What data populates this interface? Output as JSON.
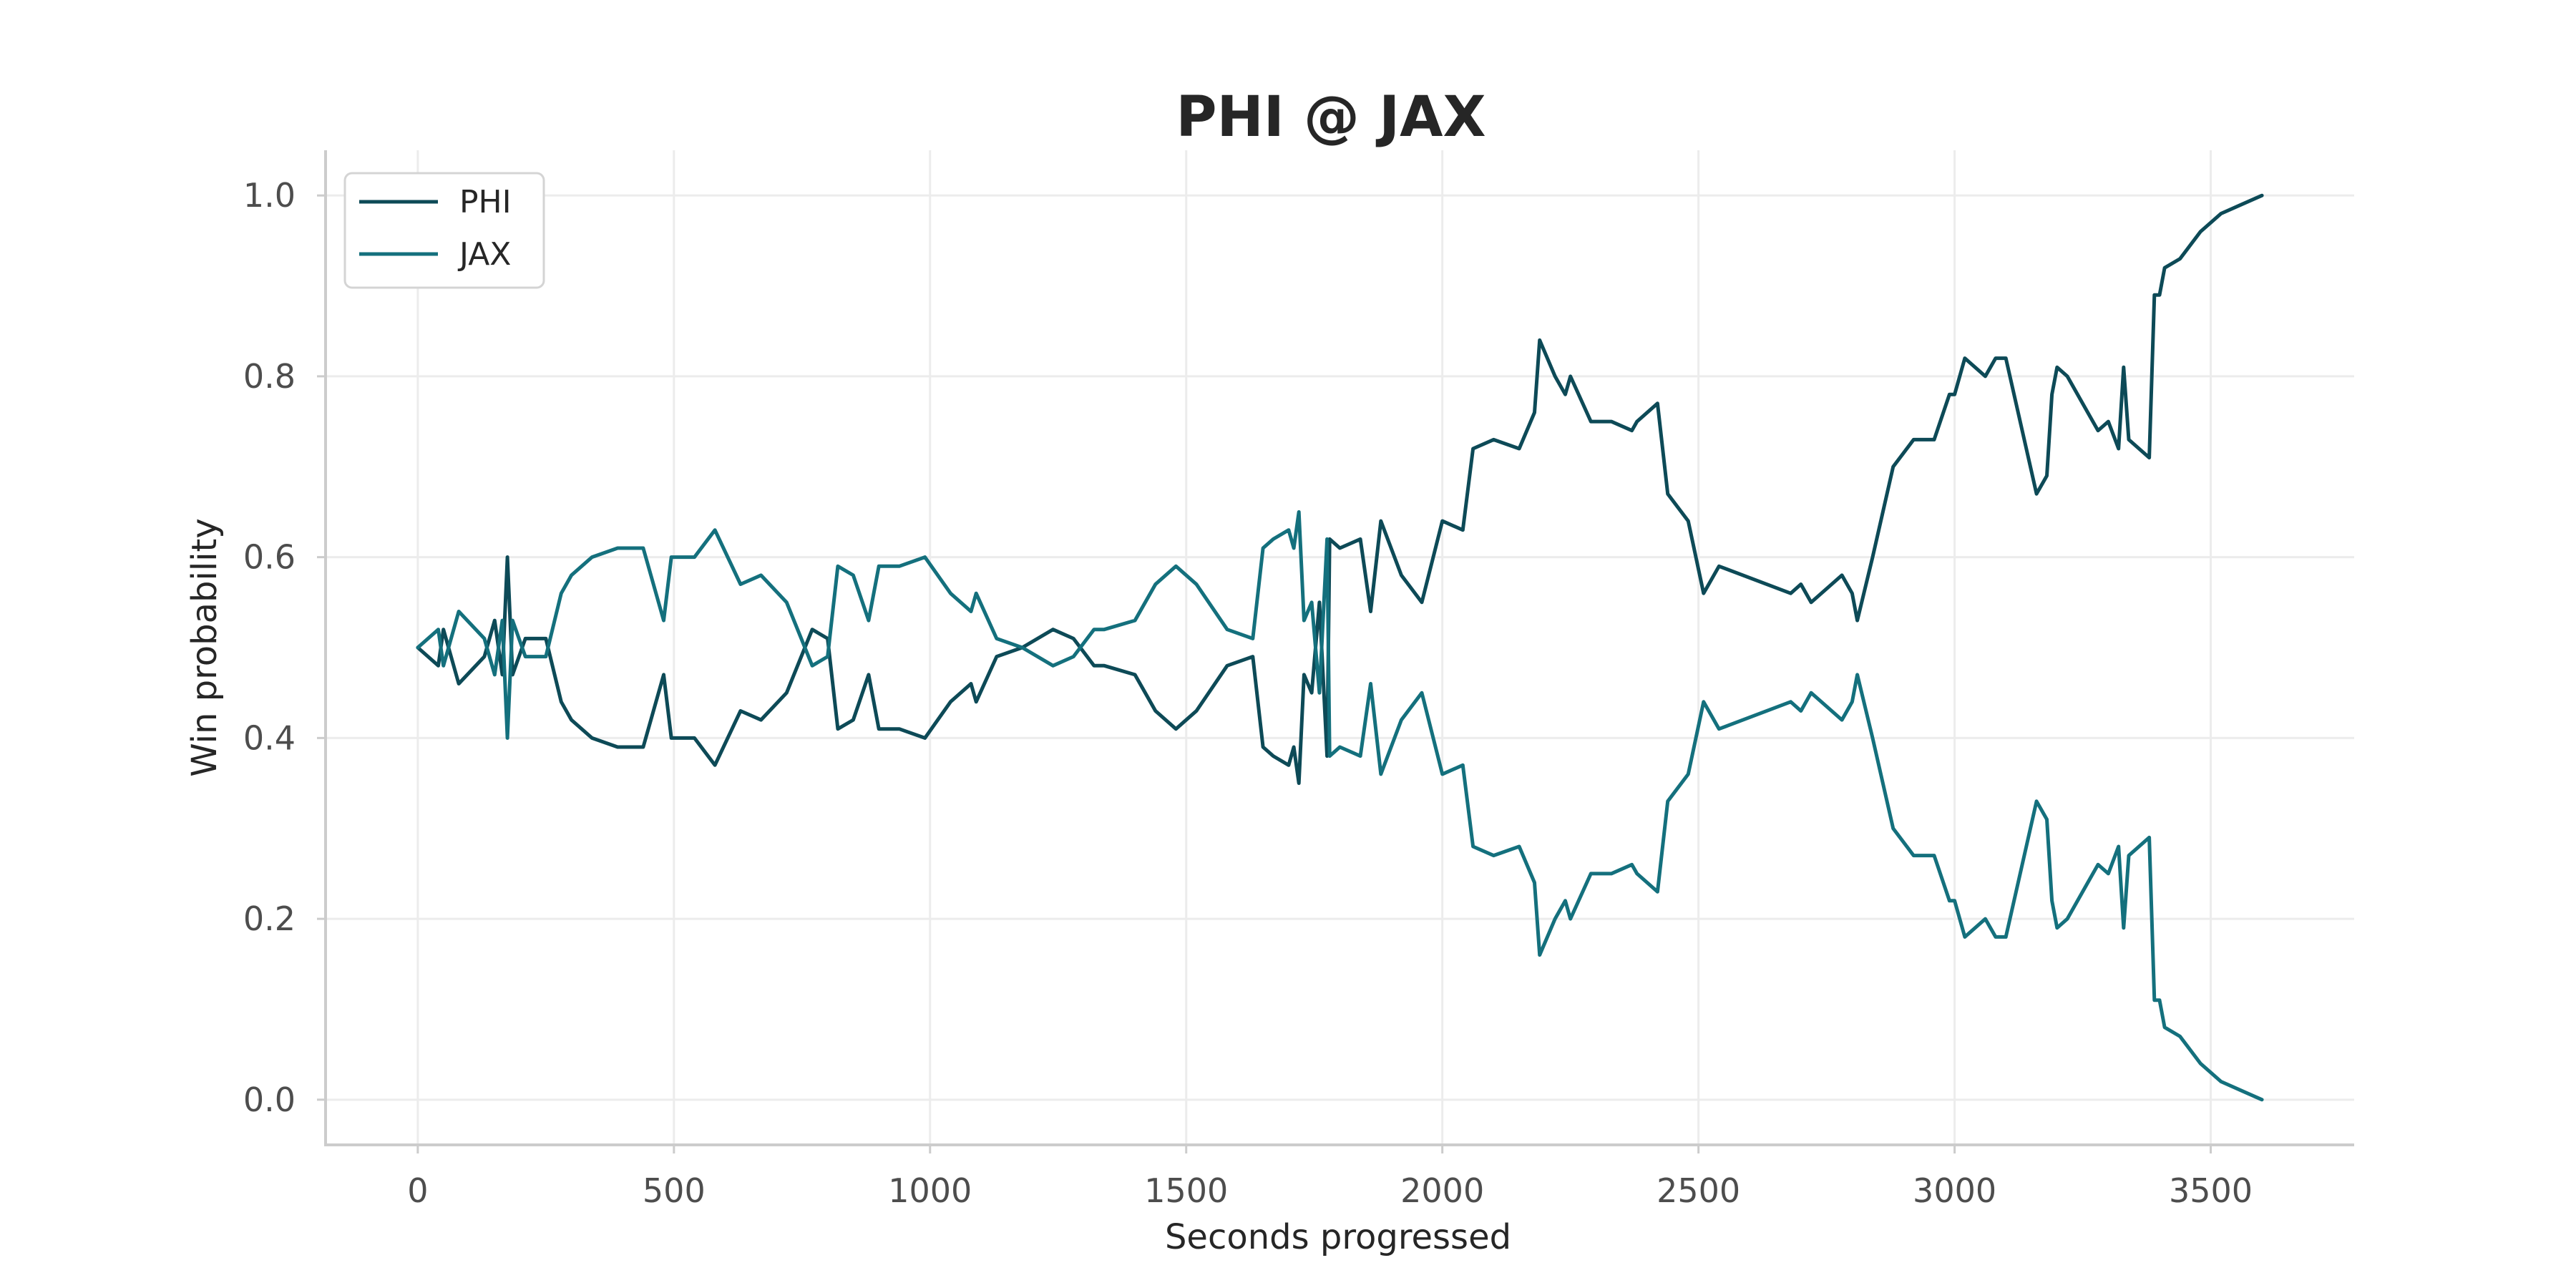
{
  "chart_data": {
    "type": "line",
    "title": "PHI @ JAX",
    "xlabel": "Seconds progressed",
    "ylabel": "Win probability",
    "xlim": [
      -180,
      3780
    ],
    "ylim": [
      -0.05,
      1.05
    ],
    "xticks": [
      0,
      500,
      1000,
      1500,
      2000,
      2500,
      3000,
      3500
    ],
    "yticks": [
      0.0,
      0.2,
      0.4,
      0.6,
      0.8,
      1.0
    ],
    "grid": true,
    "legend_position": "top-left",
    "x": [
      0,
      40,
      50,
      80,
      130,
      150,
      165,
      175,
      185,
      210,
      250,
      280,
      300,
      340,
      390,
      440,
      480,
      495,
      500,
      540,
      580,
      630,
      670,
      720,
      770,
      800,
      820,
      850,
      880,
      900,
      940,
      990,
      1040,
      1080,
      1090,
      1130,
      1180,
      1240,
      1280,
      1320,
      1340,
      1400,
      1440,
      1480,
      1520,
      1580,
      1630,
      1650,
      1670,
      1700,
      1710,
      1720,
      1730,
      1745,
      1760,
      1775,
      1780,
      1800,
      1840,
      1860,
      1880,
      1920,
      1960,
      2000,
      2040,
      2060,
      2100,
      2150,
      2180,
      2190,
      2220,
      2240,
      2250,
      2290,
      2330,
      2370,
      2380,
      2420,
      2440,
      2480,
      2510,
      2540,
      2680,
      2700,
      2720,
      2780,
      2800,
      2810,
      2840,
      2880,
      2920,
      2960,
      2990,
      3000,
      3020,
      3040,
      3060,
      3080,
      3100,
      3140,
      3160,
      3180,
      3190,
      3200,
      3220,
      3260,
      3280,
      3300,
      3320,
      3330,
      3340,
      3360,
      3380,
      3390,
      3400,
      3410,
      3440,
      3480,
      3520,
      3560,
      3600
    ],
    "series": [
      {
        "name": "PHI",
        "color": "#0d4a57",
        "values": [
          0.5,
          0.48,
          0.52,
          0.46,
          0.49,
          0.53,
          0.47,
          0.6,
          0.47,
          0.51,
          0.51,
          0.44,
          0.42,
          0.4,
          0.39,
          0.39,
          0.47,
          0.4,
          0.4,
          0.4,
          0.37,
          0.43,
          0.42,
          0.45,
          0.52,
          0.51,
          0.41,
          0.42,
          0.47,
          0.41,
          0.41,
          0.4,
          0.44,
          0.46,
          0.44,
          0.49,
          0.5,
          0.52,
          0.51,
          0.48,
          0.48,
          0.47,
          0.43,
          0.41,
          0.43,
          0.48,
          0.49,
          0.39,
          0.38,
          0.37,
          0.39,
          0.35,
          0.47,
          0.45,
          0.55,
          0.38,
          0.62,
          0.61,
          0.62,
          0.54,
          0.64,
          0.58,
          0.55,
          0.64,
          0.63,
          0.72,
          0.73,
          0.72,
          0.76,
          0.84,
          0.8,
          0.78,
          0.8,
          0.75,
          0.75,
          0.74,
          0.75,
          0.77,
          0.67,
          0.64,
          0.56,
          0.59,
          0.56,
          0.57,
          0.55,
          0.58,
          0.56,
          0.53,
          0.6,
          0.7,
          0.73,
          0.73,
          0.78,
          0.78,
          0.82,
          0.81,
          0.8,
          0.82,
          0.82,
          0.72,
          0.67,
          0.69,
          0.78,
          0.81,
          0.8,
          0.76,
          0.74,
          0.75,
          0.72,
          0.81,
          0.73,
          0.72,
          0.71,
          0.89,
          0.89,
          0.92,
          0.93,
          0.96,
          0.98,
          0.99,
          1.0
        ]
      },
      {
        "name": "JAX",
        "color": "#14707d",
        "values": [
          0.5,
          0.52,
          0.48,
          0.54,
          0.51,
          0.47,
          0.53,
          0.4,
          0.53,
          0.49,
          0.49,
          0.56,
          0.58,
          0.6,
          0.61,
          0.61,
          0.53,
          0.6,
          0.6,
          0.6,
          0.63,
          0.57,
          0.58,
          0.55,
          0.48,
          0.49,
          0.59,
          0.58,
          0.53,
          0.59,
          0.59,
          0.6,
          0.56,
          0.54,
          0.56,
          0.51,
          0.5,
          0.48,
          0.49,
          0.52,
          0.52,
          0.53,
          0.57,
          0.59,
          0.57,
          0.52,
          0.51,
          0.61,
          0.62,
          0.63,
          0.61,
          0.65,
          0.53,
          0.55,
          0.45,
          0.62,
          0.38,
          0.39,
          0.38,
          0.46,
          0.36,
          0.42,
          0.45,
          0.36,
          0.37,
          0.28,
          0.27,
          0.28,
          0.24,
          0.16,
          0.2,
          0.22,
          0.2,
          0.25,
          0.25,
          0.26,
          0.25,
          0.23,
          0.33,
          0.36,
          0.44,
          0.41,
          0.44,
          0.43,
          0.45,
          0.42,
          0.44,
          0.47,
          0.4,
          0.3,
          0.27,
          0.27,
          0.22,
          0.22,
          0.18,
          0.19,
          0.2,
          0.18,
          0.18,
          0.28,
          0.33,
          0.31,
          0.22,
          0.19,
          0.2,
          0.24,
          0.26,
          0.25,
          0.28,
          0.19,
          0.27,
          0.28,
          0.29,
          0.11,
          0.11,
          0.08,
          0.07,
          0.04,
          0.02,
          0.01,
          0.0
        ]
      }
    ]
  }
}
